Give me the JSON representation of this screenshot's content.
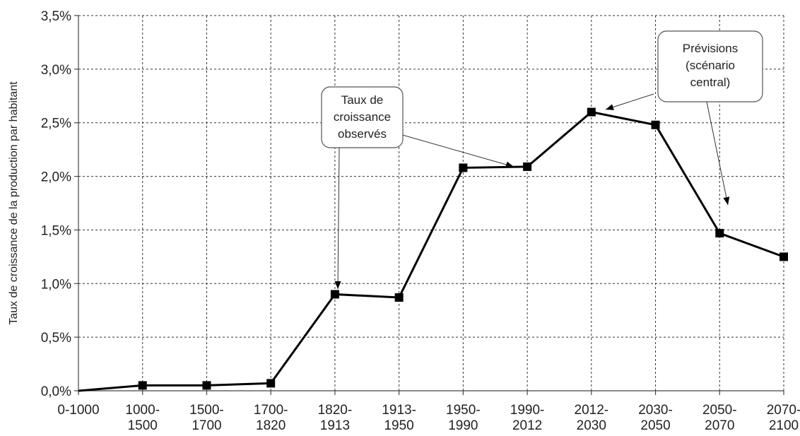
{
  "chart_data": {
    "type": "line",
    "title": "",
    "xlabel": "",
    "ylabel": "Taux de croissance de la production par habitant",
    "categories": [
      [
        "0-1000"
      ],
      [
        "1000-",
        "1500"
      ],
      [
        "1500-",
        "1700"
      ],
      [
        "1700-",
        "1820"
      ],
      [
        "1820-",
        "1913"
      ],
      [
        "1913-",
        "1950"
      ],
      [
        "1950-",
        "1990"
      ],
      [
        "1990-",
        "2012"
      ],
      [
        "2012-",
        "2030"
      ],
      [
        "2030-",
        "2050"
      ],
      [
        "2050-",
        "2070"
      ],
      [
        "2070-",
        "2100"
      ]
    ],
    "values": [
      0.0,
      0.05,
      0.05,
      0.07,
      0.9,
      0.87,
      2.08,
      2.09,
      2.6,
      2.48,
      1.47,
      1.25
    ],
    "ylim": [
      0,
      3.5
    ],
    "yticks": [
      "0,0%",
      "0,5%",
      "1,0%",
      "1,5%",
      "2,0%",
      "2,5%",
      "3,0%",
      "3,5%"
    ],
    "grid": true,
    "legend": "none",
    "annotations": [
      {
        "lines": [
          "Taux de",
          "croissance",
          "observés"
        ],
        "targets": [
          4,
          7
        ]
      },
      {
        "lines": [
          "Prévisions",
          "(scénario",
          "central)"
        ],
        "targets": [
          8,
          10
        ]
      }
    ]
  },
  "colors": {
    "series": "#000000",
    "grid": "#333333",
    "background": "#ffffff"
  }
}
